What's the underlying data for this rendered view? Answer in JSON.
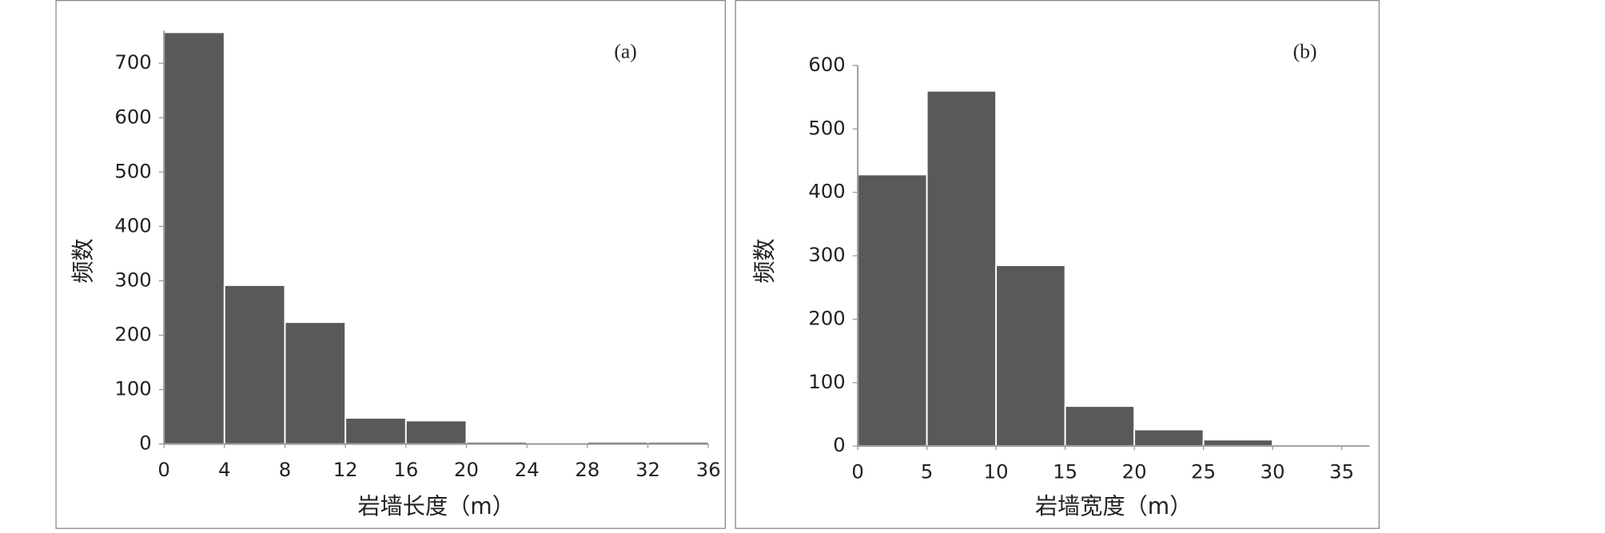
{
  "chart_data": [
    {
      "type": "histogram",
      "annotation": "(a)",
      "x_label": "岩墙长度（m）",
      "y_label": "频数",
      "bins": [
        0,
        4,
        8,
        12,
        16,
        20,
        24,
        28,
        32,
        36
      ],
      "values": [
        757,
        292,
        224,
        48,
        43,
        4,
        1,
        4,
        4
      ],
      "color": "#595959",
      "xlim": [
        0,
        36
      ],
      "ylim": [
        0,
        760
      ],
      "xticks": [
        0,
        4,
        8,
        12,
        16,
        20,
        24,
        28,
        32,
        36
      ],
      "yticks": [
        0,
        100,
        200,
        300,
        400,
        500,
        600,
        700
      ]
    },
    {
      "type": "histogram",
      "annotation": "(b)",
      "x_label": "岩墙宽度（m）",
      "y_label": "频数",
      "bins": [
        0,
        5,
        10,
        15,
        20,
        25,
        30,
        35
      ],
      "values": [
        428,
        560,
        285,
        63,
        26,
        10,
        2
      ],
      "color": "#595959",
      "xlim": [
        0,
        37
      ],
      "ylim": [
        0,
        600
      ],
      "xticks": [
        0,
        5,
        10,
        15,
        20,
        25,
        30,
        35
      ],
      "yticks": [
        0,
        100,
        200,
        300,
        400,
        500,
        600
      ]
    }
  ]
}
